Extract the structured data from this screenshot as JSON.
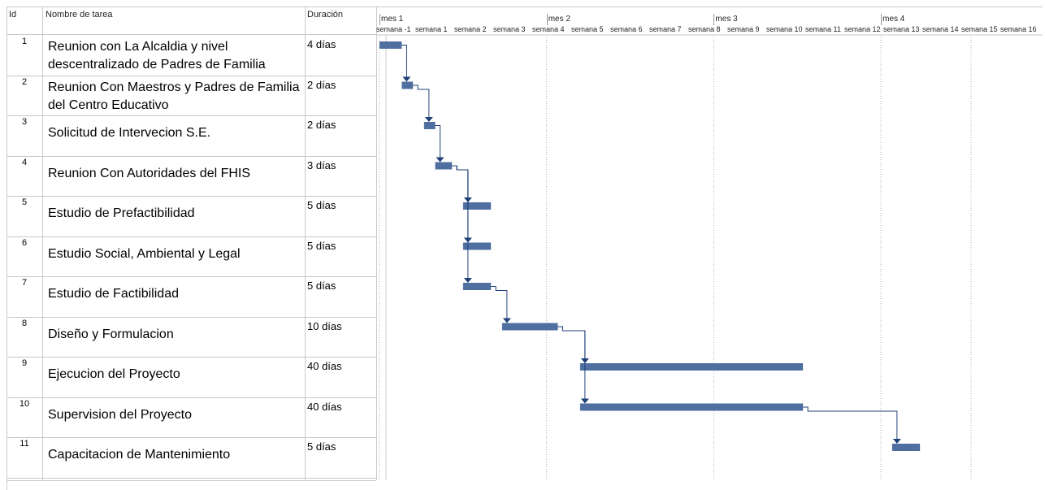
{
  "headers": {
    "id": "Id",
    "name": "Nombre de tarea",
    "duration": "Duración"
  },
  "tasks": [
    {
      "id": "1",
      "name": "Reunion con La Alcaldia y nivel descentralizado de Padres de Familia",
      "duration": "4 días"
    },
    {
      "id": "2",
      "name": "Reunion Con Maestros y Padres de Familia del Centro Educativo",
      "duration": "2 días"
    },
    {
      "id": "3",
      "name": "Solicitud de Intervecion S.E.",
      "duration": "2 días"
    },
    {
      "id": "4",
      "name": "Reunion Con Autoridades del FHIS",
      "duration": "3 días"
    },
    {
      "id": "5",
      "name": "Estudio de Prefactibilidad",
      "duration": "5 días"
    },
    {
      "id": "6",
      "name": "Estudio Social, Ambiental y Legal",
      "duration": "5 días"
    },
    {
      "id": "7",
      "name": "Estudio de Factibilidad",
      "duration": "5 días"
    },
    {
      "id": "8",
      "name": "Diseño y Formulacion",
      "duration": "10 días"
    },
    {
      "id": "9",
      "name": "Ejecucion del Proyecto",
      "duration": "40 días"
    },
    {
      "id": "10",
      "name": "Supervision del Proyecto",
      "duration": "40 días"
    },
    {
      "id": "11",
      "name": "Capacitacion de Mantenimiento",
      "duration": "5 días"
    }
  ],
  "timescale": {
    "months": [
      "mes 1",
      "mes 2",
      "mes 3",
      "mes 4"
    ],
    "weeks": [
      "semana -1",
      "semana 1",
      "semana 2",
      "semana 3",
      "semana 4",
      "semana 5",
      "semana 6",
      "semana 7",
      "semana 8",
      "semana 9",
      "semana 10",
      "semana 11",
      "semana 12",
      "semana 13",
      "semana 14",
      "semana 15",
      "semana 16"
    ]
  },
  "chart_data": {
    "type": "gantt",
    "x_unit": "días",
    "xlim": [
      -7,
      112
    ],
    "bars": [
      {
        "task": "1",
        "start": 0,
        "duration": 4
      },
      {
        "task": "2",
        "start": 4,
        "duration": 2
      },
      {
        "task": "3",
        "start": 8,
        "duration": 2
      },
      {
        "task": "4",
        "start": 10,
        "duration": 3
      },
      {
        "task": "5",
        "start": 15,
        "duration": 5
      },
      {
        "task": "6",
        "start": 15,
        "duration": 5
      },
      {
        "task": "7",
        "start": 15,
        "duration": 5
      },
      {
        "task": "8",
        "start": 22,
        "duration": 10
      },
      {
        "task": "9",
        "start": 36,
        "duration": 40
      },
      {
        "task": "10",
        "start": 36,
        "duration": 40
      },
      {
        "task": "11",
        "start": 92,
        "duration": 5
      }
    ],
    "dependencies": [
      [
        "1",
        "2"
      ],
      [
        "2",
        "3"
      ],
      [
        "3",
        "4"
      ],
      [
        "4",
        "5"
      ],
      [
        "4",
        "6"
      ],
      [
        "4",
        "7"
      ],
      [
        "7",
        "8"
      ],
      [
        "8",
        "9"
      ],
      [
        "8",
        "10"
      ],
      [
        "10",
        "11"
      ]
    ],
    "bar_color": "#4f6fa0",
    "link_color": "#1f3f78"
  }
}
